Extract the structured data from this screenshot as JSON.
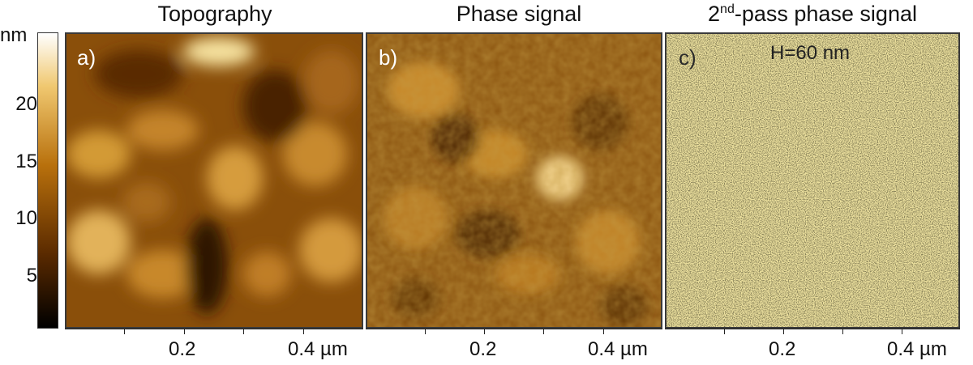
{
  "figure": {
    "panels": [
      {
        "id": "a",
        "title": "Topography",
        "letter": "a)",
        "annotation": ""
      },
      {
        "id": "b",
        "title": "Phase signal",
        "letter": "b)",
        "annotation": ""
      },
      {
        "id": "c",
        "title_sup_base": "2",
        "title_sup": "nd",
        "title_rest": "-pass phase signal",
        "letter": "c)",
        "annotation": "H=60 nm"
      }
    ],
    "colorbar": {
      "unit": "nm",
      "ticks": [
        "20",
        "15",
        "10",
        "5"
      ],
      "colors": [
        "#000000",
        "#5a2a00",
        "#b8700c",
        "#f0c870",
        "#ffffff"
      ]
    },
    "x_axis": {
      "ticks": [
        "0.2",
        "0.4 µm"
      ]
    }
  },
  "colors": {
    "topo_dark": "#3a1a00",
    "topo_mid": "#9c5a0a",
    "topo_light": "#f3d27a",
    "phase_dark": "#4a2600",
    "phase_mid": "#a86a14",
    "phase_light": "#e7b85a",
    "noise_light": "#f2e9a6",
    "noise_dark": "#3b3418"
  }
}
